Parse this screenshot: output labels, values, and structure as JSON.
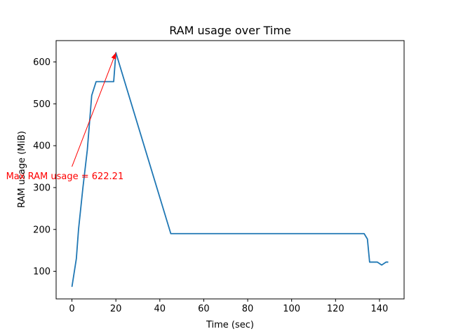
{
  "chart_data": {
    "type": "line",
    "title": "RAM usage over Time",
    "xlabel": "Time (sec)",
    "ylabel": "RAM usage (MiB)",
    "xlim": [
      -7.2,
      151.2
    ],
    "ylim": [
      34.1,
      651.0
    ],
    "xticks": [
      0,
      20,
      40,
      60,
      80,
      100,
      120,
      140
    ],
    "yticks": [
      100,
      200,
      300,
      400,
      500,
      600
    ],
    "grid": false,
    "legend": "none",
    "series": [
      {
        "color": "#1f77b4",
        "x": [
          0,
          2,
          3,
          5,
          7,
          9,
          11,
          13,
          15,
          17,
          19,
          20,
          45,
          133,
          134.5,
          135.5,
          139,
          141,
          143,
          144
        ],
        "y": [
          63,
          130,
          200,
          300,
          390,
          520,
          553,
          553,
          553,
          553,
          553,
          622.21,
          190,
          190,
          177,
          122,
          122,
          115,
          122,
          122
        ]
      }
    ],
    "annotation": {
      "text": "Max RAM usage = 622.21",
      "color": "#ff0000",
      "arrow_from": [
        0,
        350
      ],
      "arrow_to": [
        20,
        622.21
      ],
      "text_at": [
        -30,
        320
      ]
    }
  }
}
